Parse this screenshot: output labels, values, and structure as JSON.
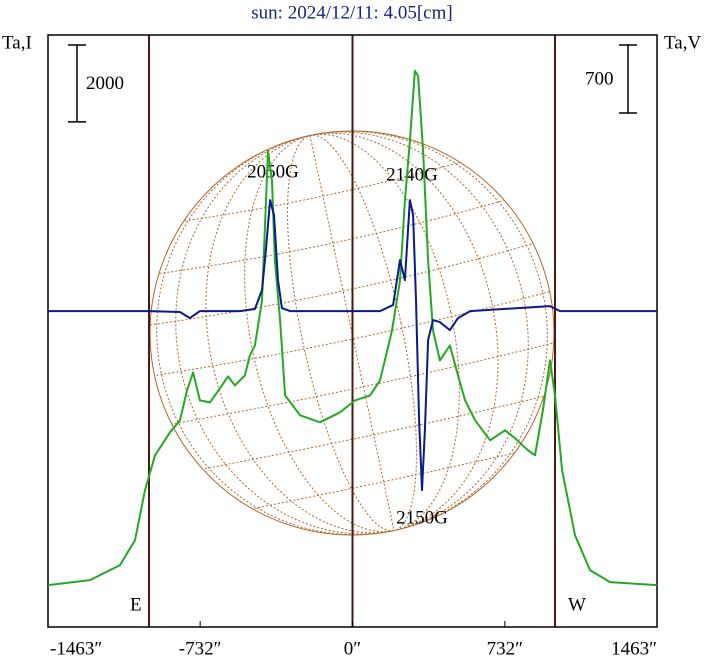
{
  "chart_data": {
    "type": "line",
    "title": "sun: 2024/12/11: 4.05[cm]",
    "y_label": "Ta,I",
    "y2_label": "Ta,V",
    "xlim": [
      -1463,
      1463
    ],
    "xticks": [
      {
        "value": -1463,
        "label": "-1463″"
      },
      {
        "value": -732,
        "label": "-732″"
      },
      {
        "value": 0,
        "label": "0″"
      },
      {
        "value": 732,
        "label": "732″"
      },
      {
        "value": 1463,
        "label": "1463″"
      }
    ],
    "ylim": [
      0,
      15400
    ],
    "y2lim": [
      -3250,
      2840
    ],
    "i_scale": 2000,
    "v_scale": 700,
    "limb_labels": [
      "E",
      "W"
    ],
    "annotations": [
      "2050G",
      "2140G",
      "2150G"
    ],
    "series": [
      {
        "name": "I",
        "color": "#22aa22",
        "x": [
          -1463,
          -1261,
          -1117,
          -1045,
          -997,
          -949,
          -877,
          -829,
          -795,
          -766,
          -733,
          -685,
          -637,
          -598,
          -565,
          -517,
          -493,
          -469,
          -435,
          -406,
          -387,
          -373,
          -348,
          -324,
          -252,
          -156,
          -60,
          12,
          84,
          132,
          190,
          228,
          252,
          276,
          300,
          315,
          339,
          363,
          387,
          420,
          468,
          507,
          541,
          589,
          661,
          733,
          781,
          843,
          877,
          915,
          949,
          973,
          1007,
          1069,
          1141,
          1237,
          1463
        ],
        "values": [
          1091,
          1221,
          1610,
          2259,
          3558,
          4467,
          5064,
          5376,
          6155,
          6622,
          5895,
          5843,
          6207,
          6518,
          6285,
          6544,
          7064,
          7323,
          8492,
          12388,
          11608,
          9531,
          7973,
          6025,
          5506,
          5324,
          5584,
          5895,
          6025,
          6415,
          7713,
          9012,
          11090,
          12648,
          14466,
          14335,
          12388,
          9531,
          7713,
          6934,
          7323,
          6544,
          5895,
          5376,
          4856,
          5116,
          4908,
          4597,
          4467,
          5636,
          6934,
          6025,
          4077,
          2389,
          1480,
          1169,
          1091
        ]
      },
      {
        "name": "V",
        "color": "#0a1a8c",
        "axis": "y2",
        "x": [
          -1463,
          -973,
          -829,
          -781,
          -733,
          -541,
          -469,
          -435,
          -416,
          -396,
          -377,
          -358,
          -339,
          -300,
          132,
          195,
          228,
          252,
          276,
          291,
          305,
          320,
          334,
          348,
          363,
          387,
          420,
          468,
          507,
          565,
          949,
          997,
          1463
        ],
        "values": [
          0,
          0,
          -10,
          -72,
          0,
          0,
          21,
          216,
          628,
          1142,
          988,
          319,
          31,
          0,
          0,
          62,
          525,
          319,
          1142,
          988,
          113,
          -1122,
          -1842,
          -1225,
          -298,
          -93,
          -113,
          -196,
          -72,
          0,
          51,
          0,
          0
        ]
      }
    ]
  }
}
